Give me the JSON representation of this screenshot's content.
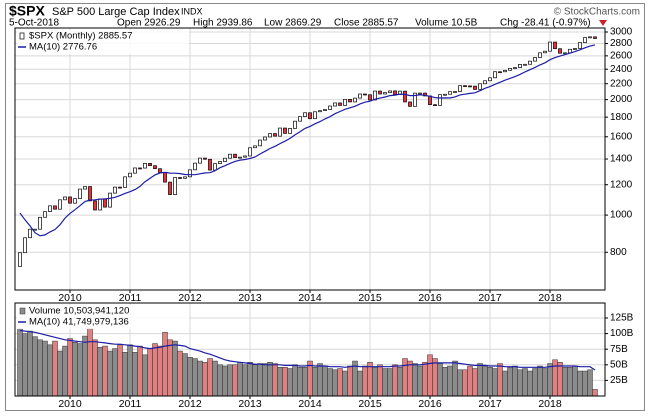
{
  "header": {
    "symbol": "$SPX",
    "name": "S&P 500 Large Cap Index",
    "exchange": "INDX",
    "source": "© StockCharts.com",
    "date": "5-Oct-2018",
    "quote": [
      "Open 2926.29",
      "High 2939.86",
      "Low 2869.29",
      "Close 2885.57",
      "Volume 10.5B",
      "Chg -28.41 (-0.97%)"
    ]
  },
  "chart_data": [
    {
      "type": "candlestick",
      "log_scale": true,
      "grid": true,
      "legend": "upper left",
      "up_color": "#ffffff",
      "down_color": "#e8303a",
      "xlim": [
        0,
        118
      ],
      "xticks": [
        {
          "value": 11,
          "label": "2010"
        },
        {
          "value": 23,
          "label": "2011"
        },
        {
          "value": 35,
          "label": "2012"
        },
        {
          "value": 47,
          "label": "2013"
        },
        {
          "value": 59,
          "label": "2014"
        },
        {
          "value": 71,
          "label": "2015"
        },
        {
          "value": 83,
          "label": "2016"
        },
        {
          "value": 95,
          "label": "2017"
        },
        {
          "value": 107,
          "label": "2018"
        }
      ],
      "ylim": [
        638,
        3073
      ],
      "yticks": [
        800,
        1000,
        1200,
        1400,
        1600,
        1800,
        2000,
        2200,
        2400,
        2600,
        2800,
        3000
      ],
      "series": [
        {
          "name": "$SPX (Monthly) 2885.57",
          "color": "#000000",
          "values": [
            735,
            798,
            873,
            919,
            919,
            987,
            1021,
            1057,
            1036,
            1096,
            1115,
            1074,
            1104,
            1169,
            1187,
            1089,
            1031,
            1102,
            1049,
            1141,
            1183,
            1181,
            1258,
            1286,
            1327,
            1326,
            1364,
            1345,
            1321,
            1292,
            1219,
            1131,
            1253,
            1247,
            1258,
            1312,
            1366,
            1408,
            1398,
            1310,
            1362,
            1379,
            1407,
            1441,
            1412,
            1416,
            1426,
            1498,
            1515,
            1569,
            1598,
            1631,
            1606,
            1686,
            1633,
            1682,
            1757,
            1806,
            1848,
            1783,
            1859,
            1872,
            1884,
            1924,
            1960,
            1931,
            2003,
            1972,
            2018,
            2068,
            2059,
            1995,
            2105,
            2068,
            2086,
            2107,
            2063,
            2104,
            1972,
            1920,
            2079,
            2080,
            2044,
            1940,
            1932,
            2060,
            2065,
            2097,
            2099,
            2174,
            2171,
            2168,
            2126,
            2199,
            2239,
            2279,
            2364,
            2363,
            2384,
            2412,
            2423,
            2470,
            2472,
            2519,
            2575,
            2648,
            2674,
            2824,
            2714,
            2641,
            2648,
            2705,
            2718,
            2816,
            2902,
            2914,
            2886
          ]
        },
        {
          "name": "MA(10) 2776.76",
          "color": "#1c1ca8",
          "values": [
            null,
            1012,
            972,
            937,
            900,
            883,
            888,
            904,
            917,
            944,
            982,
            1010,
            1033,
            1058,
            1085,
            1095,
            1096,
            1100,
            1102,
            1106,
            1113,
            1124,
            1139,
            1151,
            1165,
            1188,
            1222,
            1246,
            1273,
            1288,
            1292,
            1287,
            1286,
            1283,
            1276,
            1274,
            1274,
            1281,
            1288,
            1290,
            1305,
            1329,
            1345,
            1364,
            1380,
            1390,
            1396,
            1405,
            1417,
            1443,
            1466,
            1491,
            1511,
            1536,
            1558,
            1584,
            1618,
            1648,
            1682,
            1703,
            1729,
            1753,
            1781,
            1805,
            1838,
            1862,
            1887,
            1904,
            1921,
            1949,
            1969,
            1981,
            2004,
            2018,
            2031,
            2048,
            2054,
            2067,
            2063,
            2048,
            2050,
            2058,
            2052,
            2040,
            2024,
            2019,
            2020,
            2019,
            2032,
            2057,
            2066,
            2075,
            2083,
            2109,
            2140,
            2162,
            2192,
            2218,
            2247,
            2271,
            2296,
            2326,
            2361,
            2393,
            2426,
            2463,
            2494,
            2540,
            2573,
            2596,
            2619,
            2642,
            2667,
            2696,
            2729,
            2756,
            2777
          ]
        }
      ]
    },
    {
      "type": "bar",
      "grid": true,
      "legend": "upper left",
      "up_color": "#8c8c8c",
      "down_color": "#e08080",
      "xlim": [
        0,
        118
      ],
      "xticks": [
        {
          "value": 11,
          "label": "2010"
        },
        {
          "value": 23,
          "label": "2011"
        },
        {
          "value": 35,
          "label": "2012"
        },
        {
          "value": 47,
          "label": "2013"
        },
        {
          "value": 59,
          "label": "2014"
        },
        {
          "value": 71,
          "label": "2015"
        },
        {
          "value": 83,
          "label": "2016"
        },
        {
          "value": 95,
          "label": "2017"
        },
        {
          "value": 107,
          "label": "2018"
        }
      ],
      "ylim": [
        0,
        149
      ],
      "yticks": [
        {
          "value": 25,
          "label": "25B"
        },
        {
          "value": 50,
          "label": "50B"
        },
        {
          "value": 75,
          "label": "75B"
        },
        {
          "value": 100,
          "label": "100B"
        },
        {
          "value": 125,
          "label": "125B"
        }
      ],
      "series": [
        {
          "name": "Volume 10,503,941,120",
          "values": [
            null,
            108,
            100,
            104,
            95,
            90,
            88,
            82,
            88,
            72,
            80,
            92,
            86,
            84,
            96,
            108,
            90,
            78,
            80,
            72,
            76,
            82,
            70,
            82,
            70,
            80,
            66,
            76,
            84,
            80,
            102,
            90,
            88,
            72,
            68,
            62,
            60,
            56,
            54,
            60,
            56,
            50,
            48,
            50,
            50,
            54,
            50,
            54,
            50,
            52,
            52,
            54,
            52,
            46,
            46,
            44,
            50,
            46,
            46,
            56,
            46,
            52,
            48,
            44,
            42,
            44,
            40,
            48,
            56,
            40,
            48,
            54,
            46,
            50,
            44,
            44,
            50,
            46,
            60,
            56,
            52,
            48,
            54,
            66,
            60,
            52,
            46,
            48,
            56,
            42,
            42,
            48,
            44,
            52,
            48,
            46,
            44,
            52,
            40,
            46,
            48,
            42,
            44,
            40,
            44,
            48,
            44,
            52,
            58,
            54,
            46,
            46,
            48,
            40,
            40,
            42,
            10.5
          ]
        },
        {
          "name": "MA(10) 41,749,979,136",
          "color": "#1c1ca8",
          "values": [
            null,
            105,
            104,
            103,
            102,
            100,
            98,
            96,
            94,
            92,
            90,
            89,
            88,
            87,
            86,
            87,
            87,
            86,
            85,
            84,
            83,
            83,
            82,
            81,
            80,
            79,
            77,
            76,
            77,
            78,
            80,
            81,
            82,
            81,
            80,
            76,
            74,
            72,
            69,
            67,
            64,
            61,
            58,
            56,
            55,
            54,
            53,
            52,
            51,
            51,
            50,
            50,
            50,
            50,
            49,
            49,
            49,
            48,
            48,
            49,
            48,
            48,
            48,
            47,
            47,
            47,
            46,
            47,
            48,
            47,
            47,
            47,
            47,
            47,
            47,
            47,
            48,
            48,
            49,
            50,
            50,
            50,
            51,
            52,
            53,
            53,
            53,
            53,
            53,
            52,
            51,
            50,
            49,
            49,
            49,
            48,
            48,
            48,
            47,
            47,
            47,
            46,
            46,
            46,
            46,
            46,
            46,
            47,
            48,
            48,
            48,
            48,
            48,
            47,
            47,
            47,
            41.7
          ]
        }
      ]
    }
  ]
}
